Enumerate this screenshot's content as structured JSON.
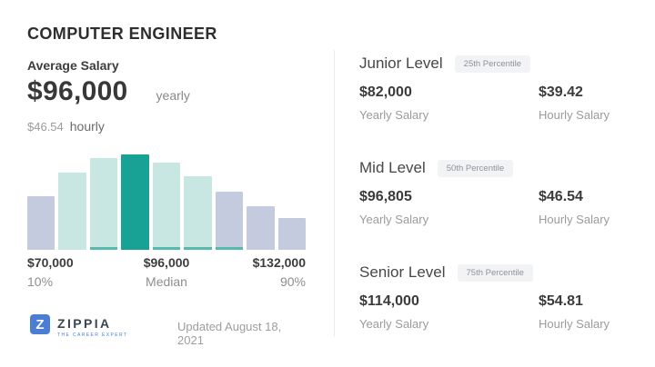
{
  "page": {
    "title": "COMPUTER ENGINEER",
    "updated": "Updated August 18, 2021"
  },
  "average": {
    "label": "Average Salary",
    "yearly_value": "$96,000",
    "yearly_unit": "yearly",
    "hourly_value": "$46.54",
    "hourly_unit": "hourly"
  },
  "chart_data": {
    "type": "bar",
    "title": "Computer Engineer salary distribution histogram",
    "ylim": [
      0,
      100
    ],
    "grid": false,
    "legend": false,
    "bars": [
      {
        "height_pct": 56,
        "color": "lavender",
        "accent_strip": false
      },
      {
        "height_pct": 81,
        "color": "teal_light",
        "accent_strip": false
      },
      {
        "height_pct": 96,
        "color": "teal_light",
        "accent_strip": true
      },
      {
        "height_pct": 100,
        "color": "teal_dark",
        "accent_strip": false
      },
      {
        "height_pct": 91,
        "color": "teal_light",
        "accent_strip": true
      },
      {
        "height_pct": 77,
        "color": "teal_light",
        "accent_strip": true
      },
      {
        "height_pct": 61,
        "color": "lavender",
        "accent_strip": true
      },
      {
        "height_pct": 46,
        "color": "lavender",
        "accent_strip": false
      },
      {
        "height_pct": 33,
        "color": "lavender",
        "accent_strip": false
      }
    ],
    "axis_markers": [
      {
        "label": "$70,000",
        "sublabel": "10%",
        "position": "left"
      },
      {
        "label": "$96,000",
        "sublabel": "Median",
        "position": "center"
      },
      {
        "label": "$132,000",
        "sublabel": "90%",
        "position": "right"
      }
    ],
    "palette": {
      "lavender": "#c5cbde",
      "teal_light": "#c9e7e2",
      "teal_dark": "#18a195",
      "accent_strip": "#56b9ad"
    }
  },
  "levels": [
    {
      "name": "Junior Level",
      "badge": "25th Percentile",
      "yearly_value": "$82,000",
      "yearly_label": "Yearly Salary",
      "hourly_value": "$39.42",
      "hourly_label": "Hourly Salary"
    },
    {
      "name": "Mid Level",
      "badge": "50th Percentile",
      "yearly_value": "$96,805",
      "yearly_label": "Yearly Salary",
      "hourly_value": "$46.54",
      "hourly_label": "Hourly Salary"
    },
    {
      "name": "Senior Level",
      "badge": "75th Percentile",
      "yearly_value": "$114,000",
      "yearly_label": "Yearly Salary",
      "hourly_value": "$54.81",
      "hourly_label": "Hourly Salary"
    }
  ],
  "brand": {
    "letter": "Z",
    "name": "ZIPPIA",
    "tagline": "THE CAREER EXPERT",
    "logo_color": "#4a7dd3"
  }
}
